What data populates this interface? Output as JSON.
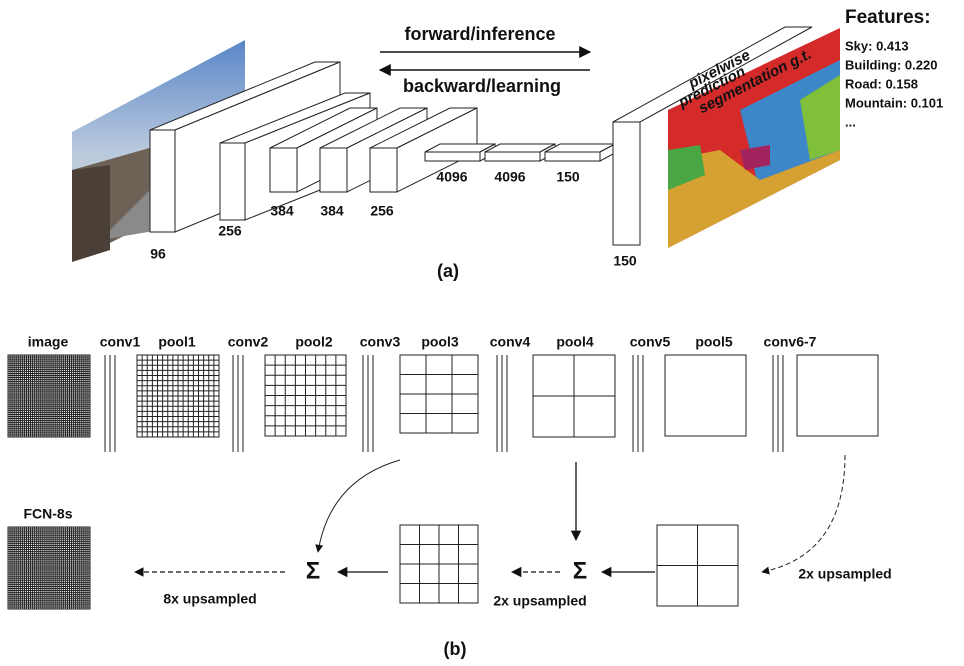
{
  "part_a": {
    "forward": "forward/inference",
    "backward": "backward/learning",
    "prediction": [
      "pixelwise",
      "prediction"
    ],
    "segmentation": "segmentation g.t.",
    "features_title": "Features:",
    "features": [
      "Sky: 0.413",
      "Building: 0.220",
      "Road: 0.158",
      "Mountain: 0.101",
      "..."
    ],
    "layers": [
      "96",
      "256",
      "384",
      "384",
      "256",
      "4096",
      "4096",
      "150",
      "150"
    ],
    "caption": "(a)"
  },
  "part_b": {
    "top_labels": [
      "image",
      "conv1",
      "pool1",
      "conv2",
      "pool2",
      "conv3",
      "pool3",
      "conv4",
      "pool4",
      "conv5",
      "pool5",
      "conv6-7"
    ],
    "output": "FCN-8s",
    "sum": [
      "Σ",
      "Σ"
    ],
    "upsample_8x": "8x upsampled",
    "upsample_2x": [
      "2x upsampled",
      "2x upsampled"
    ],
    "caption": "(b)"
  }
}
